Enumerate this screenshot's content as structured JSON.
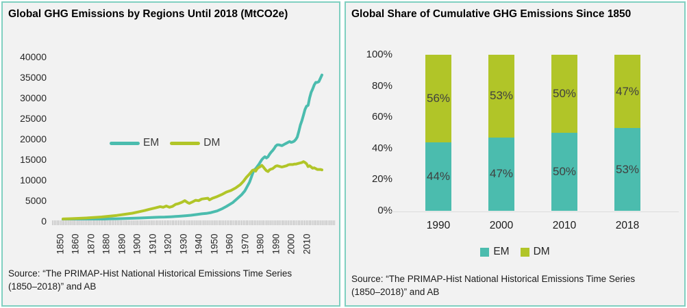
{
  "colors": {
    "em": "#4bbcae",
    "dm": "#b1c528",
    "panel_border": "#7fcfc0",
    "panel_bg": "#f2f2f2",
    "axis_text": "#262626",
    "bar_label_text": "#3f3f3f",
    "axis_line": "#dcdcdc"
  },
  "left_panel": {
    "title": "Global GHG Emissions by Regions Until 2018 (MtCO2e)",
    "source": "Source: “The PRIMAP-Hist National Historical Emissions Time Series (1850–2018)” and AB",
    "legend": {
      "em_label": "EM",
      "dm_label": "DM"
    },
    "chart_data": {
      "type": "line",
      "title": "Global GHG Emissions by Regions Until 2018 (MtCO2e)",
      "ylabel": "MtCO2e",
      "ylim": [
        0,
        40000
      ],
      "xlim": [
        1850,
        2018
      ],
      "grid": false,
      "legend_position": "center-left",
      "yticks": [
        40000,
        35000,
        30000,
        25000,
        20000,
        15000,
        10000,
        5000,
        0
      ],
      "xticks": [
        1850,
        1860,
        1870,
        1880,
        1890,
        1900,
        1910,
        1920,
        1930,
        1940,
        1950,
        1960,
        1970,
        1980,
        1990,
        2000,
        2010
      ],
      "series": [
        {
          "name": "EM",
          "key": "em",
          "points": [
            [
              1850,
              200
            ],
            [
              1855,
              215
            ],
            [
              1860,
              235
            ],
            [
              1865,
              260
            ],
            [
              1870,
              290
            ],
            [
              1875,
              320
            ],
            [
              1880,
              360
            ],
            [
              1885,
              400
            ],
            [
              1890,
              450
            ],
            [
              1895,
              510
            ],
            [
              1900,
              580
            ],
            [
              1905,
              660
            ],
            [
              1910,
              750
            ],
            [
              1913,
              800
            ],
            [
              1916,
              820
            ],
            [
              1920,
              880
            ],
            [
              1925,
              1000
            ],
            [
              1930,
              1150
            ],
            [
              1933,
              1250
            ],
            [
              1936,
              1400
            ],
            [
              1940,
              1600
            ],
            [
              1943,
              1700
            ],
            [
              1946,
              1900
            ],
            [
              1950,
              2300
            ],
            [
              1953,
              2800
            ],
            [
              1956,
              3400
            ],
            [
              1960,
              4300
            ],
            [
              1963,
              5300
            ],
            [
              1966,
              6300
            ],
            [
              1968,
              7200
            ],
            [
              1970,
              8600
            ],
            [
              1971,
              9300
            ],
            [
              1972,
              10300
            ],
            [
              1973,
              11400
            ],
            [
              1974,
              12300
            ],
            [
              1975,
              12600
            ],
            [
              1976,
              13100
            ],
            [
              1977,
              13600
            ],
            [
              1978,
              14200
            ],
            [
              1979,
              14800
            ],
            [
              1980,
              15200
            ],
            [
              1981,
              15500
            ],
            [
              1982,
              15200
            ],
            [
              1983,
              15500
            ],
            [
              1984,
              16100
            ],
            [
              1985,
              16600
            ],
            [
              1986,
              17000
            ],
            [
              1987,
              17500
            ],
            [
              1988,
              18100
            ],
            [
              1989,
              18400
            ],
            [
              1990,
              18400
            ],
            [
              1991,
              18300
            ],
            [
              1992,
              18200
            ],
            [
              1993,
              18400
            ],
            [
              1994,
              18600
            ],
            [
              1995,
              18800
            ],
            [
              1996,
              19000
            ],
            [
              1997,
              19200
            ],
            [
              1998,
              19000
            ],
            [
              1999,
              19100
            ],
            [
              2000,
              19300
            ],
            [
              2001,
              19700
            ],
            [
              2002,
              20300
            ],
            [
              2003,
              21700
            ],
            [
              2004,
              23200
            ],
            [
              2005,
              24300
            ],
            [
              2006,
              25600
            ],
            [
              2007,
              27000
            ],
            [
              2008,
              27800
            ],
            [
              2009,
              28000
            ],
            [
              2010,
              29800
            ],
            [
              2011,
              31200
            ],
            [
              2012,
              32000
            ],
            [
              2013,
              33000
            ],
            [
              2014,
              33600
            ],
            [
              2015,
              33600
            ],
            [
              2016,
              33800
            ],
            [
              2017,
              34600
            ],
            [
              2018,
              35400
            ]
          ]
        },
        {
          "name": "DM",
          "key": "dm",
          "points": [
            [
              1850,
              350
            ],
            [
              1855,
              420
            ],
            [
              1860,
              500
            ],
            [
              1865,
              590
            ],
            [
              1870,
              700
            ],
            [
              1875,
              840
            ],
            [
              1880,
              1020
            ],
            [
              1885,
              1220
            ],
            [
              1890,
              1480
            ],
            [
              1895,
              1750
            ],
            [
              1900,
              2150
            ],
            [
              1903,
              2400
            ],
            [
              1906,
              2700
            ],
            [
              1910,
              3050
            ],
            [
              1913,
              3350
            ],
            [
              1915,
              3200
            ],
            [
              1917,
              3500
            ],
            [
              1919,
              3200
            ],
            [
              1921,
              3400
            ],
            [
              1923,
              3900
            ],
            [
              1925,
              4100
            ],
            [
              1927,
              4400
            ],
            [
              1929,
              4800
            ],
            [
              1931,
              4300
            ],
            [
              1932,
              4150
            ],
            [
              1934,
              4500
            ],
            [
              1936,
              4900
            ],
            [
              1938,
              4800
            ],
            [
              1940,
              5200
            ],
            [
              1942,
              5300
            ],
            [
              1944,
              5400
            ],
            [
              1945,
              5000
            ],
            [
              1947,
              5400
            ],
            [
              1950,
              5800
            ],
            [
              1953,
              6300
            ],
            [
              1956,
              6900
            ],
            [
              1959,
              7300
            ],
            [
              1962,
              7900
            ],
            [
              1965,
              8700
            ],
            [
              1967,
              9500
            ],
            [
              1969,
              10500
            ],
            [
              1971,
              11300
            ],
            [
              1973,
              12200
            ],
            [
              1974,
              12300
            ],
            [
              1975,
              12000
            ],
            [
              1976,
              12600
            ],
            [
              1977,
              12900
            ],
            [
              1978,
              13100
            ],
            [
              1979,
              13400
            ],
            [
              1980,
              13000
            ],
            [
              1981,
              12500
            ],
            [
              1982,
              12100
            ],
            [
              1983,
              11900
            ],
            [
              1984,
              12300
            ],
            [
              1985,
              12500
            ],
            [
              1986,
              12600
            ],
            [
              1987,
              12900
            ],
            [
              1988,
              13200
            ],
            [
              1989,
              13300
            ],
            [
              1990,
              13200
            ],
            [
              1991,
              13100
            ],
            [
              1992,
              13000
            ],
            [
              1993,
              13100
            ],
            [
              1994,
              13200
            ],
            [
              1995,
              13300
            ],
            [
              1996,
              13500
            ],
            [
              1997,
              13600
            ],
            [
              1998,
              13600
            ],
            [
              1999,
              13600
            ],
            [
              2000,
              13700
            ],
            [
              2001,
              13700
            ],
            [
              2002,
              13800
            ],
            [
              2003,
              13900
            ],
            [
              2004,
              14000
            ],
            [
              2005,
              14100
            ],
            [
              2006,
              14300
            ],
            [
              2007,
              14100
            ],
            [
              2008,
              13800
            ],
            [
              2009,
              13100
            ],
            [
              2010,
              13300
            ],
            [
              2011,
              13000
            ],
            [
              2012,
              12700
            ],
            [
              2013,
              12800
            ],
            [
              2014,
              12600
            ],
            [
              2015,
              12400
            ],
            [
              2016,
              12400
            ],
            [
              2017,
              12400
            ],
            [
              2018,
              12300
            ]
          ]
        }
      ]
    }
  },
  "right_panel": {
    "title": "Global Share of Cumulative GHG Emissions Since 1850",
    "source": "Source: “The PRIMAP-Hist National Historical Emissions Time Series (1850–2018)” and AB",
    "legend": {
      "em_label": "EM",
      "dm_label": "DM"
    },
    "chart_data": {
      "type": "bar",
      "stacked": true,
      "unit": "%",
      "categories": [
        "1990",
        "2000",
        "2010",
        "2018"
      ],
      "series": [
        {
          "name": "EM",
          "key": "em",
          "values": [
            44,
            47,
            50,
            53
          ]
        },
        {
          "name": "DM",
          "key": "dm",
          "values": [
            56,
            53,
            50,
            47
          ]
        }
      ],
      "data_labels": {
        "EM": [
          "44%",
          "47%",
          "50%",
          "53%"
        ],
        "DM": [
          "56%",
          "53%",
          "50%",
          "47%"
        ]
      },
      "yticks": [
        "100%",
        "80%",
        "60%",
        "40%",
        "20%",
        "0%"
      ],
      "ylim": [
        0,
        100
      ],
      "grid": false,
      "legend_position": "bottom"
    }
  }
}
